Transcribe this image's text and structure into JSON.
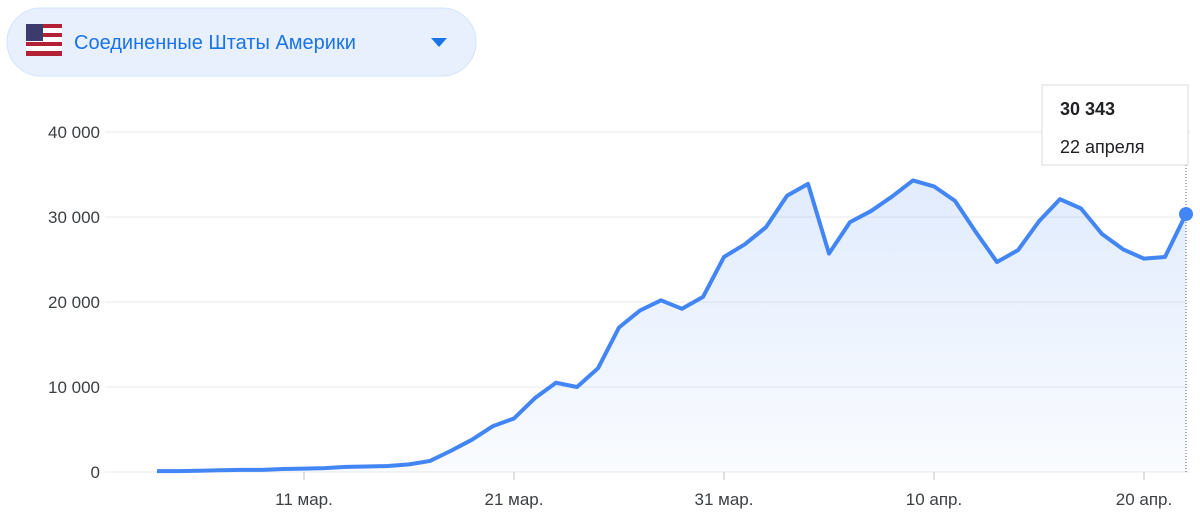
{
  "header": {
    "country": "Соединенные Штаты Америки"
  },
  "chart_data": {
    "type": "line",
    "color": "#4285f4",
    "categories": [
      null,
      null,
      null,
      null,
      null,
      null,
      null,
      "11 мар.",
      null,
      null,
      null,
      null,
      null,
      null,
      null,
      null,
      null,
      "21 мар.",
      null,
      null,
      null,
      null,
      null,
      null,
      null,
      null,
      null,
      "31 мар.",
      null,
      null,
      null,
      null,
      null,
      null,
      null,
      null,
      null,
      "10 апр.",
      null,
      null,
      null,
      null,
      null,
      null,
      null,
      null,
      null,
      "20 апр.",
      null,
      null
    ],
    "values": [
      100,
      100,
      150,
      200,
      250,
      250,
      350,
      400,
      450,
      600,
      650,
      700,
      900,
      1300,
      2500,
      3800,
      5400,
      6300,
      8700,
      10500,
      10000,
      12200,
      17000,
      19000,
      20200,
      19200,
      20600,
      25300,
      26800,
      28800,
      32500,
      33900,
      25700,
      29400,
      30700,
      32400,
      34300,
      33600,
      31900,
      28200,
      24700,
      26100,
      29500,
      32100,
      31000,
      28000,
      26200,
      25100,
      25300,
      30343
    ],
    "ylim": [
      0,
      40000
    ],
    "yticks": [
      0,
      {
        "value": 10000,
        "label": "10 000"
      },
      {
        "value": 20000,
        "label": "20 000"
      },
      {
        "value": 30000,
        "label": "30 000"
      },
      {
        "value": 40000,
        "label": "40 000"
      }
    ],
    "grid": true,
    "tooltip": {
      "value": "30 343",
      "date": "22 апреля"
    }
  }
}
